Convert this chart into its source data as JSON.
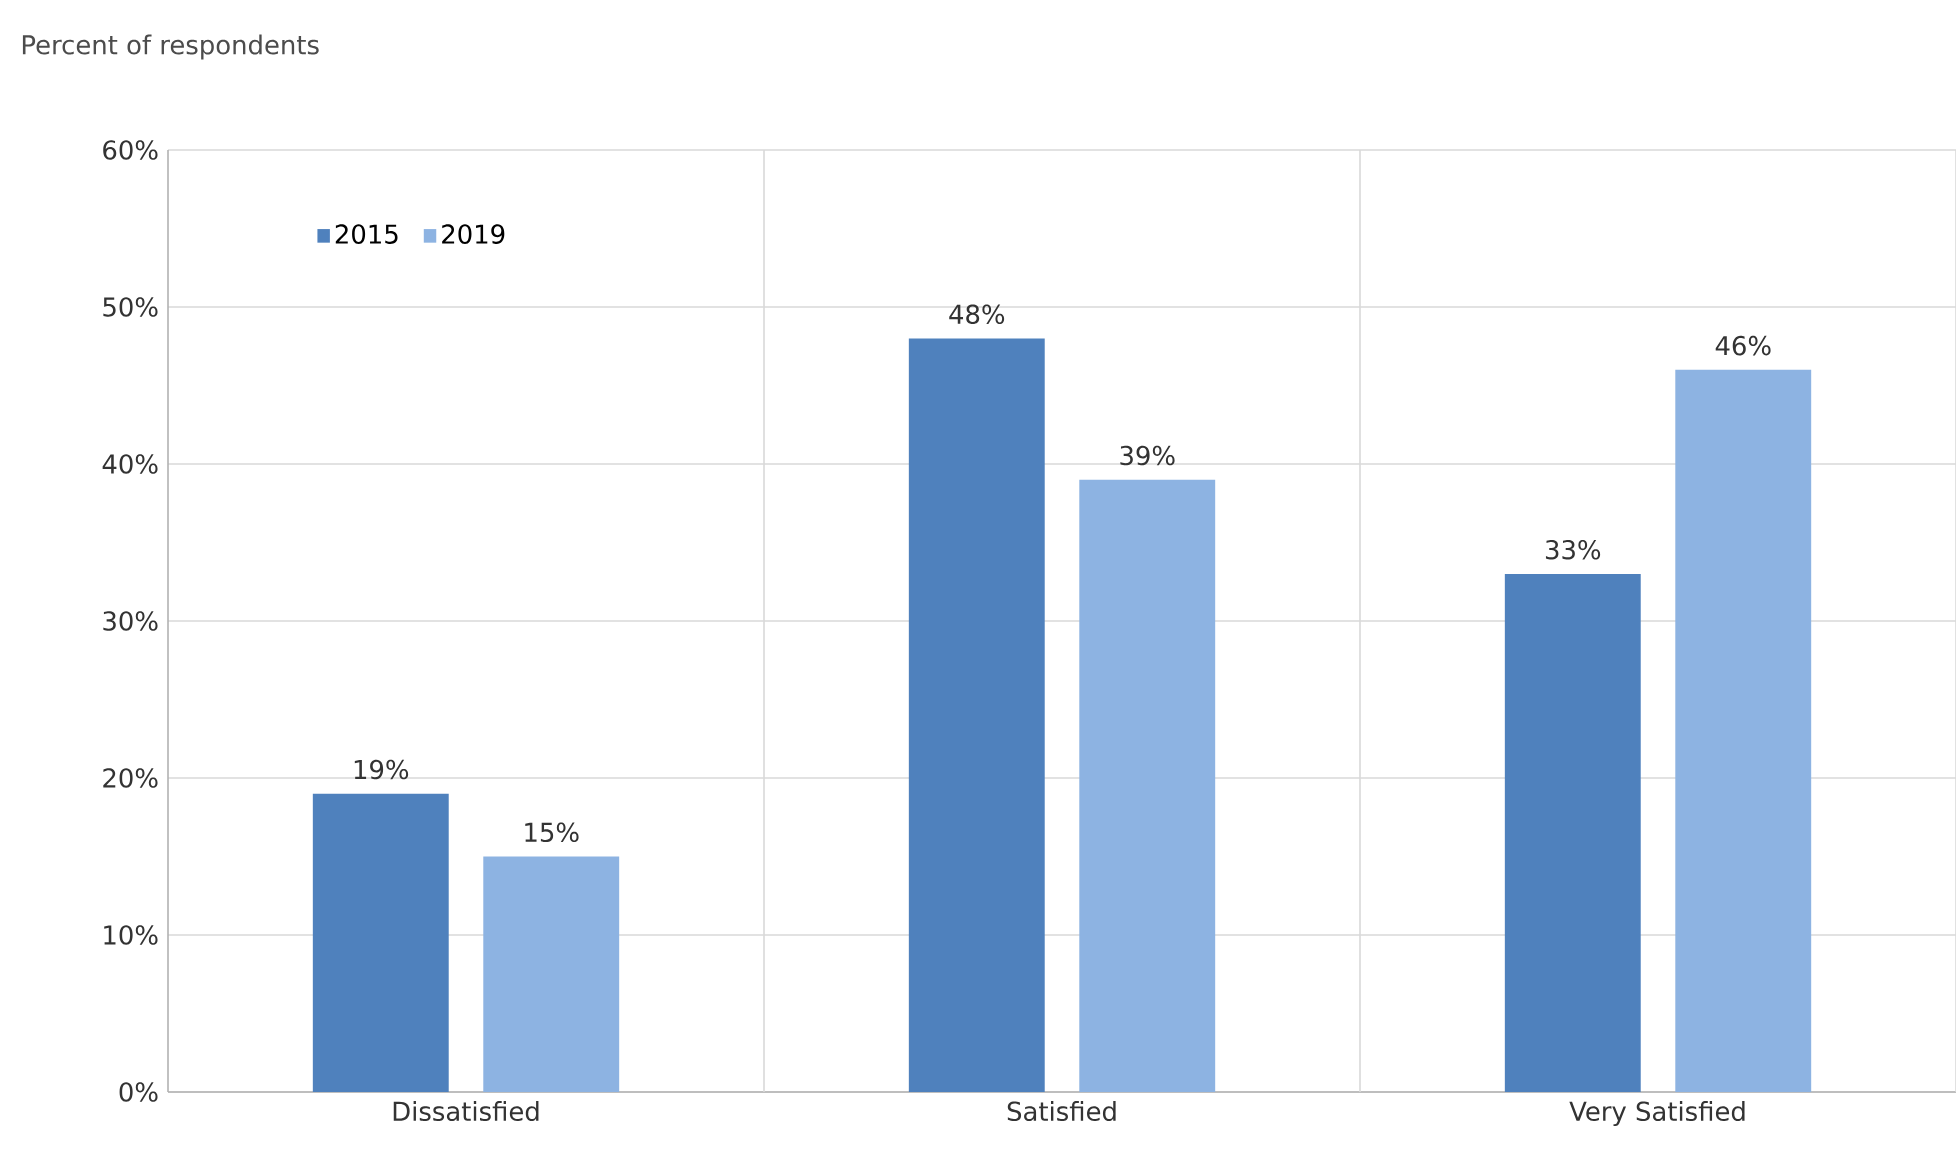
{
  "chart_data": {
    "type": "bar",
    "ylabel": "Percent of respondents",
    "categories": [
      "Dissatisfied",
      "Satisfied",
      "Very Satisfied"
    ],
    "series": [
      {
        "name": "2015",
        "color": "#4f81bd",
        "values": [
          19,
          48,
          33
        ],
        "value_labels": [
          "19%",
          "48%",
          "33%"
        ]
      },
      {
        "name": "2019",
        "color": "#8db3e2",
        "values": [
          15,
          39,
          46
        ],
        "value_labels": [
          "15%",
          "39%",
          "46%"
        ]
      }
    ],
    "ylim": [
      0,
      60
    ],
    "yticks": [
      {
        "value": 0,
        "label": "0%"
      },
      {
        "value": 10,
        "label": "10%"
      },
      {
        "value": 20,
        "label": "20%"
      },
      {
        "value": 30,
        "label": "30%"
      },
      {
        "value": 40,
        "label": "40%"
      },
      {
        "value": 50,
        "label": "50%"
      },
      {
        "value": 60,
        "label": "60%"
      }
    ],
    "grid": true,
    "legend": "top left"
  }
}
